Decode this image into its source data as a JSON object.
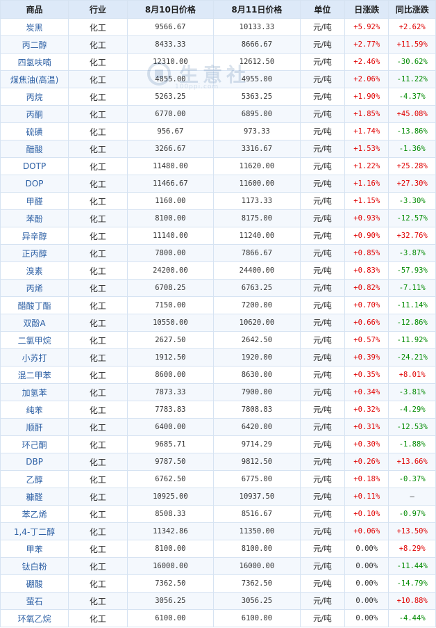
{
  "table": {
    "headers": [
      "商品",
      "行业",
      "8月10日价格",
      "8月11日价格",
      "单位",
      "日涨跌",
      "同比涨跌"
    ],
    "rows": [
      [
        "炭黑",
        "化工",
        "9566.67",
        "10133.33",
        "元/吨",
        "+5.92%",
        "+2.62%"
      ],
      [
        "丙二醇",
        "化工",
        "8433.33",
        "8666.67",
        "元/吨",
        "+2.77%",
        "+11.59%"
      ],
      [
        "四氢呋喃",
        "化工",
        "12310.00",
        "12612.50",
        "元/吨",
        "+2.46%",
        "-30.62%"
      ],
      [
        "煤焦油(高温)",
        "化工",
        "4855.00",
        "4955.00",
        "元/吨",
        "+2.06%",
        "-11.22%"
      ],
      [
        "丙烷",
        "化工",
        "5263.25",
        "5363.25",
        "元/吨",
        "+1.90%",
        "-4.37%"
      ],
      [
        "丙酮",
        "化工",
        "6770.00",
        "6895.00",
        "元/吨",
        "+1.85%",
        "+45.08%"
      ],
      [
        "硫磺",
        "化工",
        "956.67",
        "973.33",
        "元/吨",
        "+1.74%",
        "-13.86%"
      ],
      [
        "醋酸",
        "化工",
        "3266.67",
        "3316.67",
        "元/吨",
        "+1.53%",
        "-1.36%"
      ],
      [
        "DOTP",
        "化工",
        "11480.00",
        "11620.00",
        "元/吨",
        "+1.22%",
        "+25.28%"
      ],
      [
        "DOP",
        "化工",
        "11466.67",
        "11600.00",
        "元/吨",
        "+1.16%",
        "+27.30%"
      ],
      [
        "甲醛",
        "化工",
        "1160.00",
        "1173.33",
        "元/吨",
        "+1.15%",
        "-3.30%"
      ],
      [
        "苯酚",
        "化工",
        "8100.00",
        "8175.00",
        "元/吨",
        "+0.93%",
        "-12.57%"
      ],
      [
        "异辛醇",
        "化工",
        "11140.00",
        "11240.00",
        "元/吨",
        "+0.90%",
        "+32.76%"
      ],
      [
        "正丙醇",
        "化工",
        "7800.00",
        "7866.67",
        "元/吨",
        "+0.85%",
        "-3.87%"
      ],
      [
        "溴素",
        "化工",
        "24200.00",
        "24400.00",
        "元/吨",
        "+0.83%",
        "-57.93%"
      ],
      [
        "丙烯",
        "化工",
        "6708.25",
        "6763.25",
        "元/吨",
        "+0.82%",
        "-7.11%"
      ],
      [
        "醋酸丁酯",
        "化工",
        "7150.00",
        "7200.00",
        "元/吨",
        "+0.70%",
        "-11.14%"
      ],
      [
        "双酚A",
        "化工",
        "10550.00",
        "10620.00",
        "元/吨",
        "+0.66%",
        "-12.86%"
      ],
      [
        "二氯甲烷",
        "化工",
        "2627.50",
        "2642.50",
        "元/吨",
        "+0.57%",
        "-11.92%"
      ],
      [
        "小苏打",
        "化工",
        "1912.50",
        "1920.00",
        "元/吨",
        "+0.39%",
        "-24.21%"
      ],
      [
        "混二甲苯",
        "化工",
        "8600.00",
        "8630.00",
        "元/吨",
        "+0.35%",
        "+8.01%"
      ],
      [
        "加氢苯",
        "化工",
        "7873.33",
        "7900.00",
        "元/吨",
        "+0.34%",
        "-3.81%"
      ],
      [
        "纯苯",
        "化工",
        "7783.83",
        "7808.83",
        "元/吨",
        "+0.32%",
        "-4.29%"
      ],
      [
        "顺酐",
        "化工",
        "6400.00",
        "6420.00",
        "元/吨",
        "+0.31%",
        "-12.53%"
      ],
      [
        "环己酮",
        "化工",
        "9685.71",
        "9714.29",
        "元/吨",
        "+0.30%",
        "-1.88%"
      ],
      [
        "DBP",
        "化工",
        "9787.50",
        "9812.50",
        "元/吨",
        "+0.26%",
        "+13.66%"
      ],
      [
        "乙醇",
        "化工",
        "6762.50",
        "6775.00",
        "元/吨",
        "+0.18%",
        "-0.37%"
      ],
      [
        "糠醛",
        "化工",
        "10925.00",
        "10937.50",
        "元/吨",
        "+0.11%",
        "—"
      ],
      [
        "苯乙烯",
        "化工",
        "8508.33",
        "8516.67",
        "元/吨",
        "+0.10%",
        "-0.97%"
      ],
      [
        "1,4-丁二醇",
        "化工",
        "11342.86",
        "11350.00",
        "元/吨",
        "+0.06%",
        "+13.50%"
      ],
      [
        "甲苯",
        "化工",
        "8100.00",
        "8100.00",
        "元/吨",
        "0.00%",
        "+8.29%"
      ],
      [
        "钛白粉",
        "化工",
        "16000.00",
        "16000.00",
        "元/吨",
        "0.00%",
        "-11.44%"
      ],
      [
        "硼酸",
        "化工",
        "7362.50",
        "7362.50",
        "元/吨",
        "0.00%",
        "-14.79%"
      ],
      [
        "萤石",
        "化工",
        "3056.25",
        "3056.25",
        "元/吨",
        "0.00%",
        "+10.88%"
      ],
      [
        "环氧乙烷",
        "化工",
        "6100.00",
        "6100.00",
        "元/吨",
        "0.00%",
        "-4.44%"
      ]
    ]
  },
  "watermark": {
    "text": "生意社",
    "url": "100ppi.com",
    "color": "#1a4f8e"
  },
  "colors": {
    "rise": "#e00000",
    "fall": "#008a00",
    "header_bg": "#dde9f8",
    "name_text": "#2c5fa4"
  }
}
